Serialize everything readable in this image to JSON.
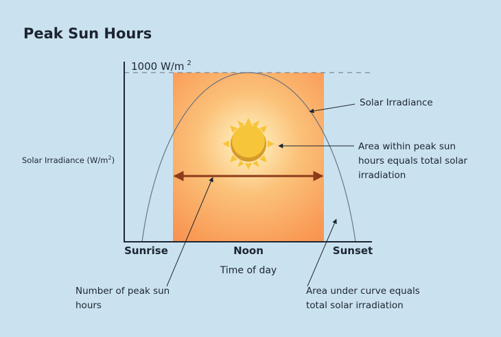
{
  "header": {
    "title": "Peak Sun Hours"
  },
  "y_axis": {
    "label": "Solar Irradiance (W/m",
    "label_superscript": "2",
    "label_suffix": ")"
  },
  "peak_line": {
    "label": "1000 W/m",
    "superscript": "2"
  },
  "x_axis": {
    "labels": [
      "Sunrise",
      "Noon",
      "Sunset"
    ],
    "title": "Time of day"
  },
  "annotations": {
    "curve": [
      "Solar Irradiance"
    ],
    "peak_area": [
      "Area within peak sun",
      "hours equals total solar",
      "irradiation"
    ],
    "peak_hours": [
      "Number of peak sun",
      "hours"
    ],
    "under_curve": [
      "Area under curve equals",
      "total solar irradiation"
    ]
  }
}
